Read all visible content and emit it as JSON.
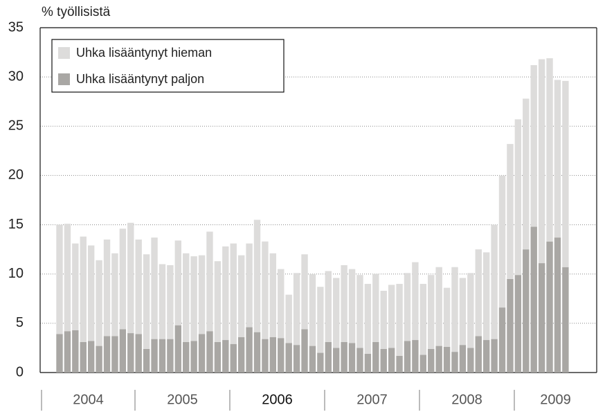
{
  "chart_data": {
    "type": "stacked_bar",
    "y_axis_label": "% työllisistä",
    "categories": [
      null,
      null,
      null,
      null,
      null,
      null,
      null,
      null,
      null,
      null,
      null,
      null,
      null,
      null,
      null,
      null,
      null,
      null,
      null,
      null,
      null,
      null,
      null,
      null,
      null,
      null,
      null,
      null,
      null,
      null,
      null,
      null,
      null,
      null,
      null,
      null,
      null,
      null,
      null,
      null,
      null,
      null,
      null,
      null,
      null,
      null,
      null,
      null,
      null,
      null,
      null,
      null,
      null,
      null,
      null,
      null,
      null,
      null,
      null,
      null,
      null,
      null,
      null,
      null,
      null
    ],
    "year_labels": [
      "2004",
      "2005",
      "2006",
      "2007",
      "2008",
      "2009"
    ],
    "series": [
      {
        "name": "Uhka lisääntynyt paljon",
        "color": "#a9a7a4",
        "values": [
          3.9,
          4.2,
          4.3,
          3.1,
          3.2,
          2.7,
          3.7,
          3.7,
          4.4,
          4.0,
          3.9,
          2.4,
          3.4,
          3.4,
          3.4,
          4.8,
          3.1,
          3.2,
          3.9,
          4.2,
          3.1,
          3.3,
          2.9,
          3.6,
          4.6,
          4.1,
          3.4,
          3.6,
          3.5,
          3.0,
          2.8,
          4.4,
          2.7,
          2.0,
          3.1,
          2.5,
          3.1,
          3.0,
          2.5,
          1.9,
          3.1,
          2.4,
          2.5,
          1.7,
          3.2,
          3.3,
          1.8,
          2.4,
          2.7,
          2.6,
          2.1,
          2.8,
          2.5,
          3.7,
          3.3,
          3.4,
          6.6,
          9.5,
          9.9,
          12.5,
          14.8,
          11.1,
          13.3,
          13.7,
          10.7
        ]
      },
      {
        "name": "Uhka lisääntynyt hieman",
        "color": "#dddcdb",
        "values": [
          11.1,
          10.9,
          8.8,
          10.7,
          9.7,
          8.7,
          9.8,
          8.4,
          10.2,
          11.2,
          9.6,
          9.6,
          10.3,
          7.6,
          7.5,
          8.6,
          9.0,
          8.6,
          8.0,
          10.1,
          8.2,
          9.5,
          10.2,
          8.3,
          8.5,
          11.4,
          9.9,
          8.5,
          7.0,
          4.9,
          7.3,
          7.6,
          7.3,
          6.7,
          7.2,
          7.1,
          7.8,
          7.5,
          7.4,
          7.1,
          6.9,
          5.9,
          6.4,
          7.3,
          6.9,
          7.9,
          7.2,
          7.5,
          8.0,
          6.0,
          8.6,
          6.8,
          7.6,
          8.8,
          8.9,
          11.6,
          13.4,
          13.7,
          15.8,
          15.3,
          16.4,
          20.7,
          18.6,
          16.0,
          18.9
        ]
      }
    ],
    "ylim": [
      0,
      35
    ],
    "yticks": [
      0,
      5,
      10,
      15,
      20,
      25,
      30,
      35
    ],
    "grid": true
  }
}
